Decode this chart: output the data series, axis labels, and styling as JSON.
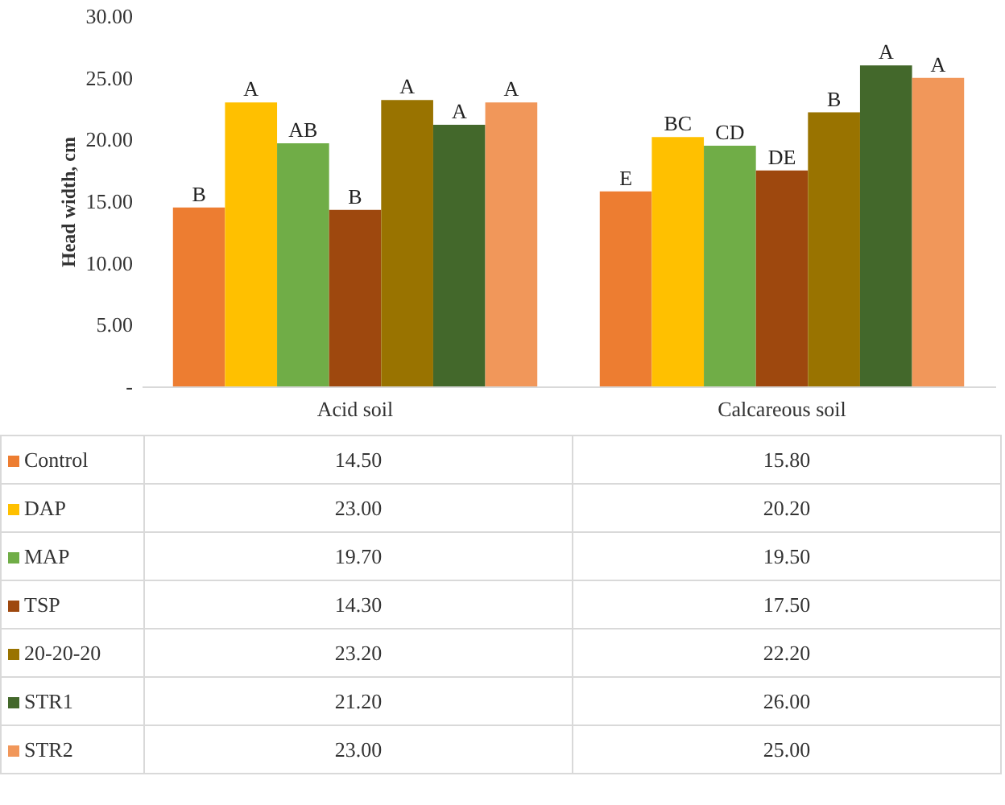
{
  "chart_data": {
    "type": "bar",
    "ylabel": "Head width, cm",
    "categories": [
      "Acid soil",
      "Calcareous soil"
    ],
    "ylim": [
      0,
      30
    ],
    "yticks": [
      {
        "value": 0,
        "label": "-"
      },
      {
        "value": 5,
        "label": "5.00"
      },
      {
        "value": 10,
        "label": "10.00"
      },
      {
        "value": 15,
        "label": "15.00"
      },
      {
        "value": 20,
        "label": "20.00"
      },
      {
        "value": 25,
        "label": "25.00"
      },
      {
        "value": 30,
        "label": "30.00"
      }
    ],
    "grid": false,
    "legend": "bottom",
    "series": [
      {
        "name": "Control",
        "color": "#ed7d31",
        "values": [
          14.5,
          15.8
        ],
        "value_labels": [
          "14.50",
          "15.80"
        ]
      },
      {
        "name": "DAP",
        "color": "#ffc000",
        "values": [
          23.0,
          20.2
        ],
        "value_labels": [
          "23.00",
          "20.20"
        ]
      },
      {
        "name": "MAP",
        "color": "#70ad47",
        "values": [
          19.7,
          19.5
        ],
        "value_labels": [
          "19.70",
          "19.50"
        ]
      },
      {
        "name": "TSP",
        "color": "#9e480e",
        "values": [
          14.3,
          17.5
        ],
        "value_labels": [
          "14.30",
          "17.50"
        ]
      },
      {
        "name": "20-20-20",
        "color": "#997300",
        "values": [
          23.2,
          22.2
        ],
        "value_labels": [
          "23.20",
          "22.20"
        ]
      },
      {
        "name": "STR1",
        "color": "#43682b",
        "values": [
          21.2,
          26.0
        ],
        "value_labels": [
          "21.20",
          "26.00"
        ]
      },
      {
        "name": "STR2",
        "color": "#f1975a",
        "values": [
          23.0,
          25.0
        ],
        "value_labels": [
          "23.00",
          "25.00"
        ]
      }
    ],
    "annotations": [
      "B",
      "A",
      "AB",
      "B",
      "A",
      "A",
      "A",
      "E",
      "BC",
      "CD",
      "DE",
      "B",
      "A",
      "A"
    ]
  }
}
